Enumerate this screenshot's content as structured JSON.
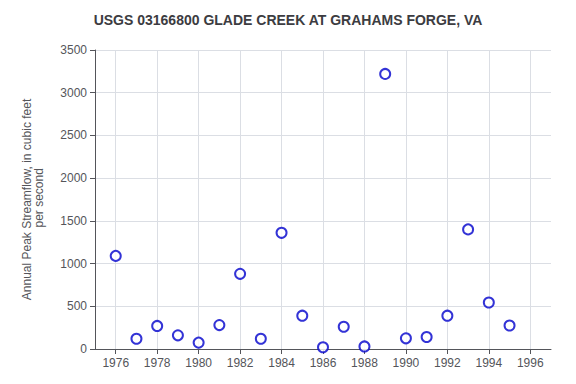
{
  "chart_data": {
    "type": "scatter",
    "title": "USGS 03166800 GLADE CREEK AT GRAHAMS FORGE, VA",
    "ylabel": "Annual Peak Streamflow, in cubic feet\n per second",
    "x": [
      1976,
      1977,
      1978,
      1979,
      1980,
      1981,
      1982,
      1983,
      1984,
      1985,
      1986,
      1987,
      1988,
      1989,
      1990,
      1991,
      1992,
      1993,
      1994,
      1995
    ],
    "values": [
      1090,
      120,
      270,
      160,
      75,
      280,
      880,
      120,
      1360,
      390,
      20,
      260,
      30,
      3220,
      125,
      140,
      390,
      1400,
      545,
      275
    ],
    "xlim": [
      1975.0,
      1997.0
    ],
    "ylim": [
      0,
      3500
    ],
    "xticks": [
      1976,
      1978,
      1980,
      1982,
      1984,
      1986,
      1988,
      1990,
      1992,
      1994,
      1996
    ],
    "yticks": [
      0,
      500,
      1000,
      1500,
      2000,
      2500,
      3000,
      3500
    ],
    "color": "#0000cc",
    "marker": "open circle",
    "grid": true
  }
}
